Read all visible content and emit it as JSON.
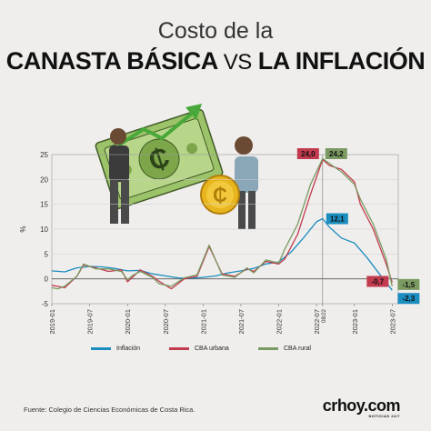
{
  "title": {
    "line1": "Costo de la",
    "line2_a": "CANASTA BÁSICA",
    "line2_vs": "VS",
    "line2_b": "LA INFLACIÓN"
  },
  "source": "Fuente: Colegio de Ciencias Económicas de Costa Rica.",
  "brand": {
    "name": "crhoy.com",
    "tagline": "NOTICIAS 24/7"
  },
  "colors": {
    "inflacion": "#1b8dbf",
    "cba_urbana": "#c23a4e",
    "cba_rural": "#7a9a62"
  },
  "chart_data": {
    "type": "line",
    "ylabel": "%",
    "ylim": [
      -5,
      25
    ],
    "yticks": [
      -5,
      0,
      5,
      10,
      15,
      20,
      25
    ],
    "xlim": [
      2019.0,
      2023.58
    ],
    "xticks": [
      {
        "x": 2019.0,
        "label": "2019-01"
      },
      {
        "x": 2019.5,
        "label": "2019-07"
      },
      {
        "x": 2020.0,
        "label": "2020-01"
      },
      {
        "x": 2020.5,
        "label": "2020-07"
      },
      {
        "x": 2021.0,
        "label": "2021-01"
      },
      {
        "x": 2021.5,
        "label": "2021-07"
      },
      {
        "x": 2022.0,
        "label": "2022-01"
      },
      {
        "x": 2022.5,
        "label": "2022-07"
      },
      {
        "x": 2022.58,
        "label": "08/22"
      },
      {
        "x": 2023.0,
        "label": "2023-01"
      },
      {
        "x": 2023.5,
        "label": "2023-07"
      }
    ],
    "legend": {
      "placement": "bottom"
    },
    "series": [
      {
        "name": "Inflación",
        "color": "#1b8dbf",
        "points": [
          [
            2019.0,
            1.6
          ],
          [
            2019.17,
            1.4
          ],
          [
            2019.33,
            2.2
          ],
          [
            2019.5,
            2.5
          ],
          [
            2019.67,
            2.4
          ],
          [
            2019.83,
            2.1
          ],
          [
            2020.0,
            1.6
          ],
          [
            2020.17,
            1.7
          ],
          [
            2020.33,
            1.0
          ],
          [
            2020.5,
            0.6
          ],
          [
            2020.67,
            0.2
          ],
          [
            2020.83,
            0.1
          ],
          [
            2021.0,
            0.3
          ],
          [
            2021.17,
            0.6
          ],
          [
            2021.33,
            1.2
          ],
          [
            2021.5,
            1.6
          ],
          [
            2021.67,
            2.1
          ],
          [
            2021.83,
            3.0
          ],
          [
            2022.0,
            3.4
          ],
          [
            2022.17,
            5.5
          ],
          [
            2022.33,
            8.3
          ],
          [
            2022.5,
            11.5
          ],
          [
            2022.58,
            12.1
          ],
          [
            2022.67,
            10.4
          ],
          [
            2022.83,
            8.2
          ],
          [
            2023.0,
            7.2
          ],
          [
            2023.17,
            4.2
          ],
          [
            2023.33,
            1.0
          ],
          [
            2023.5,
            -2.3
          ]
        ]
      },
      {
        "name": "CBA urbana",
        "color": "#c23a4e",
        "points": [
          [
            2019.0,
            -1.3
          ],
          [
            2019.08,
            -1.5
          ],
          [
            2019.17,
            -1.8
          ],
          [
            2019.33,
            0.5
          ],
          [
            2019.42,
            2.8
          ],
          [
            2019.58,
            2.2
          ],
          [
            2019.75,
            1.5
          ],
          [
            2019.92,
            1.8
          ],
          [
            2020.0,
            -0.6
          ],
          [
            2020.08,
            0.5
          ],
          [
            2020.17,
            1.8
          ],
          [
            2020.33,
            0.5
          ],
          [
            2020.42,
            -0.5
          ],
          [
            2020.58,
            -2.0
          ],
          [
            2020.75,
            0.0
          ],
          [
            2020.92,
            0.5
          ],
          [
            2021.08,
            6.5
          ],
          [
            2021.25,
            1.0
          ],
          [
            2021.42,
            0.5
          ],
          [
            2021.58,
            2.0
          ],
          [
            2021.67,
            1.5
          ],
          [
            2021.83,
            3.5
          ],
          [
            2022.0,
            3.0
          ],
          [
            2022.08,
            4.0
          ],
          [
            2022.25,
            9.0
          ],
          [
            2022.42,
            17.0
          ],
          [
            2022.58,
            24.0
          ],
          [
            2022.67,
            22.8
          ],
          [
            2022.83,
            22.0
          ],
          [
            2023.0,
            19.5
          ],
          [
            2023.08,
            15.0
          ],
          [
            2023.25,
            10.0
          ],
          [
            2023.42,
            3.0
          ],
          [
            2023.5,
            -0.7
          ]
        ]
      },
      {
        "name": "CBA rural",
        "color": "#7a9a62",
        "points": [
          [
            2019.0,
            -1.8
          ],
          [
            2019.08,
            -2.0
          ],
          [
            2019.17,
            -1.5
          ],
          [
            2019.33,
            0.5
          ],
          [
            2019.42,
            3.0
          ],
          [
            2019.58,
            2.0
          ],
          [
            2019.75,
            2.0
          ],
          [
            2019.92,
            1.5
          ],
          [
            2020.0,
            -0.2
          ],
          [
            2020.08,
            0.8
          ],
          [
            2020.17,
            1.5
          ],
          [
            2020.33,
            0.3
          ],
          [
            2020.42,
            -1.0
          ],
          [
            2020.58,
            -1.5
          ],
          [
            2020.75,
            0.2
          ],
          [
            2020.92,
            0.8
          ],
          [
            2021.08,
            6.8
          ],
          [
            2021.25,
            0.8
          ],
          [
            2021.42,
            0.3
          ],
          [
            2021.58,
            2.2
          ],
          [
            2021.67,
            1.2
          ],
          [
            2021.83,
            3.8
          ],
          [
            2022.0,
            3.2
          ],
          [
            2022.08,
            6.0
          ],
          [
            2022.25,
            11.0
          ],
          [
            2022.42,
            19.0
          ],
          [
            2022.58,
            24.2
          ],
          [
            2022.67,
            23.2
          ],
          [
            2022.83,
            21.5
          ],
          [
            2023.0,
            19.0
          ],
          [
            2023.08,
            16.0
          ],
          [
            2023.25,
            11.0
          ],
          [
            2023.42,
            4.0
          ],
          [
            2023.5,
            -1.5
          ]
        ]
      }
    ],
    "callouts": [
      {
        "series": "CBA urbana",
        "x": 2022.58,
        "y": 24.0,
        "label": "24,0",
        "color": "#c23a4e",
        "side": "left"
      },
      {
        "series": "CBA rural",
        "x": 2022.58,
        "y": 24.2,
        "label": "24,2",
        "color": "#7a9a62",
        "side": "right"
      },
      {
        "series": "Inflación",
        "x": 2022.58,
        "y": 12.1,
        "label": "12,1",
        "color": "#1b8dbf",
        "side": "right"
      },
      {
        "series": "CBA urbana",
        "x": 2023.5,
        "y": -0.7,
        "label": "-0,7",
        "color": "#c23a4e",
        "side": "left"
      },
      {
        "series": "CBA rural",
        "x": 2023.5,
        "y": -1.5,
        "label": "-1,5",
        "color": "#7a9a62",
        "side": "right"
      },
      {
        "series": "Inflación",
        "x": 2023.5,
        "y": -2.3,
        "label": "-2,3",
        "color": "#1b8dbf",
        "side": "right"
      }
    ]
  }
}
